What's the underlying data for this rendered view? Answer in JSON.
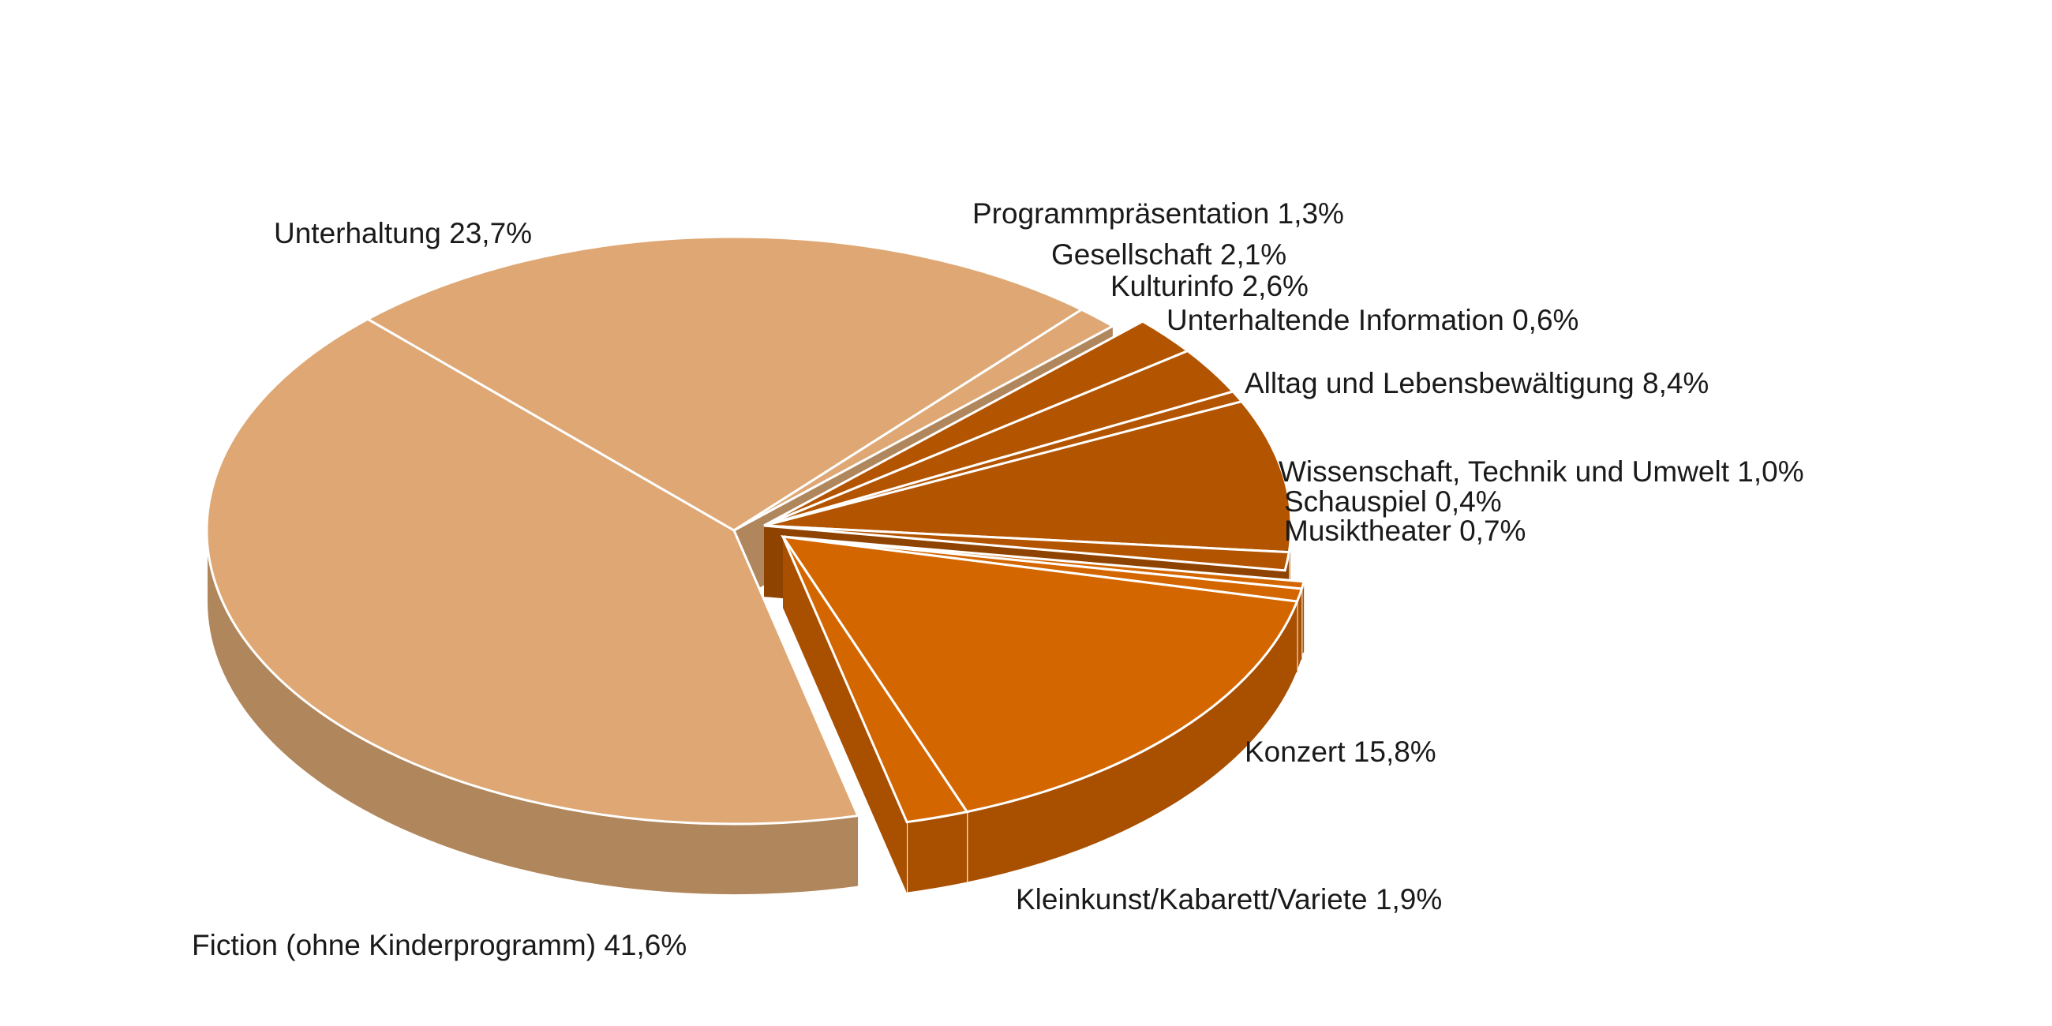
{
  "chart_data": {
    "type": "pie",
    "slices": [
      {
        "label": "Fiction (ohne Kinderprogramm)",
        "value_text": "41,6%",
        "value": 41.6,
        "color": "#DEA773",
        "side_color": "#B0865C",
        "group": "light"
      },
      {
        "label": "Unterhaltung",
        "value_text": "23,7%",
        "value": 23.7,
        "color": "#DEA773",
        "side_color": "#B0865C",
        "group": "light"
      },
      {
        "label": "Programmpräsentation",
        "value_text": "1,3%",
        "value": 1.3,
        "color": "#DEA773",
        "side_color": "#B0865C",
        "group": "light"
      },
      {
        "label": "Gesellschaft",
        "value_text": "2,1%",
        "value": 2.1,
        "color": "#B35400",
        "side_color": "#8F4300",
        "group": "dark"
      },
      {
        "label": "Kulturinfo",
        "value_text": "2,6%",
        "value": 2.6,
        "color": "#B35400",
        "side_color": "#8F4300",
        "group": "dark"
      },
      {
        "label": "Unterhaltende Information",
        "value_text": "0,6%",
        "value": 0.6,
        "color": "#B35400",
        "side_color": "#8F4300",
        "group": "dark"
      },
      {
        "label": "Alltag und Lebensbewältigung",
        "value_text": "8,4%",
        "value": 8.4,
        "color": "#B35400",
        "side_color": "#8F4300",
        "group": "dark"
      },
      {
        "label": "Wissenschaft, Technik und Umwelt",
        "value_text": "1,0%",
        "value": 1.0,
        "color": "#B35400",
        "side_color": "#8F4300",
        "group": "dark"
      },
      {
        "label": "Schauspiel",
        "value_text": "0,4%",
        "value": 0.4,
        "color": "#D46600",
        "side_color": "#A84F00",
        "group": "orange"
      },
      {
        "label": "Musiktheater",
        "value_text": "0,7%",
        "value": 0.7,
        "color": "#D46600",
        "side_color": "#A84F00",
        "group": "orange"
      },
      {
        "label": "Konzert",
        "value_text": "15,8%",
        "value": 15.8,
        "color": "#D46600",
        "side_color": "#A84F00",
        "group": "orange"
      },
      {
        "label": "Kleinkunst/Kabarett/Variete",
        "value_text": "1,9%",
        "value": 1.9,
        "color": "#D46600",
        "side_color": "#A84F00",
        "group": "orange"
      }
    ]
  }
}
